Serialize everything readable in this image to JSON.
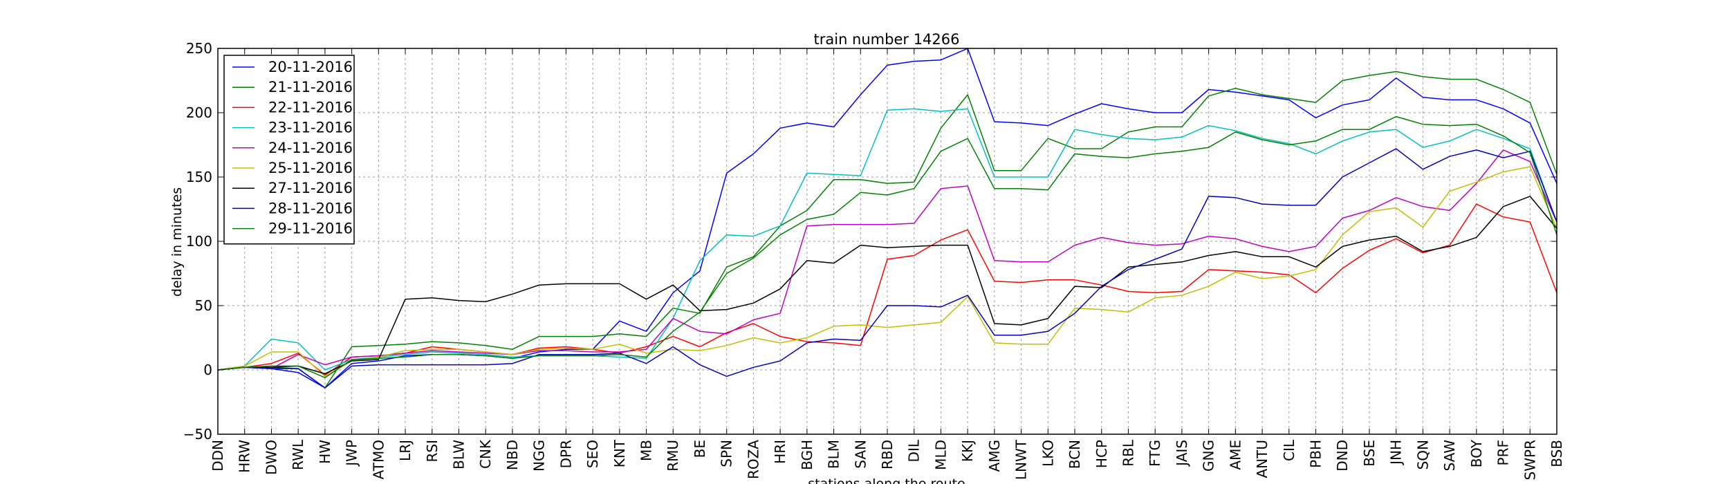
{
  "chart_data": {
    "type": "line",
    "title": "train number 14266",
    "xlabel": "stations along the route",
    "ylabel": "delay in minutes",
    "ylim": [
      -50,
      250
    ],
    "yticks": [
      "−50",
      "0",
      "50",
      "100",
      "150",
      "200",
      "250"
    ],
    "grid": true,
    "legend_position": "top-left",
    "categories": [
      "DDN",
      "HRW",
      "DWO",
      "RWL",
      "HW",
      "JWP",
      "ATMO",
      "LRJ",
      "RSI",
      "BLW",
      "CNK",
      "NBD",
      "NGG",
      "DPR",
      "SEO",
      "KNT",
      "MB",
      "RMU",
      "BE",
      "SPN",
      "ROZA",
      "HRI",
      "BGH",
      "BLM",
      "SAN",
      "RBD",
      "DIL",
      "MLD",
      "KKJ",
      "AMG",
      "LNWT",
      "LKO",
      "BCN",
      "HCP",
      "RBL",
      "FTG",
      "JAIS",
      "GNG",
      "AME",
      "ANTU",
      "CIL",
      "PBH",
      "DND",
      "BSE",
      "JNH",
      "SQN",
      "SAW",
      "BOY",
      "PRF",
      "SWPR",
      "BSB"
    ],
    "series": [
      {
        "name": "20-11-2016",
        "color": "#0000ff",
        "values": [
          0,
          2,
          1,
          -2,
          -14,
          5,
          7,
          11,
          12,
          12,
          11,
          9,
          14,
          16,
          16,
          38,
          30,
          60,
          77,
          153,
          168,
          188,
          192,
          189,
          214,
          237,
          240,
          241,
          250,
          193,
          192,
          190,
          199,
          207,
          203,
          200,
          200,
          218,
          216,
          213,
          210,
          196,
          206,
          210,
          227,
          212,
          210,
          210,
          203,
          192,
          145
        ]
      },
      {
        "name": "21-11-2016",
        "color": "#008000",
        "values": [
          0,
          2,
          2,
          1,
          -14,
          18,
          19,
          20,
          22,
          21,
          19,
          16,
          26,
          26,
          26,
          28,
          26,
          48,
          44,
          80,
          88,
          112,
          124,
          148,
          148,
          145,
          146,
          188,
          214,
          155,
          155,
          180,
          172,
          172,
          185,
          189,
          189,
          213,
          219,
          214,
          211,
          208,
          225,
          229,
          232,
          228,
          226,
          226,
          218,
          208,
          152
        ]
      },
      {
        "name": "22-11-2016",
        "color": "#ff0000",
        "values": [
          0,
          2,
          5,
          13,
          -4,
          10,
          11,
          13,
          18,
          16,
          14,
          12,
          17,
          18,
          16,
          13,
          18,
          26,
          18,
          29,
          36,
          26,
          22,
          21,
          19,
          86,
          89,
          101,
          109,
          69,
          68,
          70,
          70,
          66,
          61,
          60,
          61,
          78,
          77,
          76,
          74,
          60,
          79,
          93,
          102,
          91,
          97,
          129,
          119,
          115,
          60
        ]
      },
      {
        "name": "23-11-2016",
        "color": "#00bfbf",
        "values": [
          0,
          3,
          24,
          21,
          0,
          8,
          10,
          12,
          14,
          13,
          12,
          10,
          11,
          11,
          11,
          10,
          9,
          40,
          85,
          105,
          104,
          112,
          153,
          152,
          151,
          202,
          203,
          201,
          203,
          150,
          150,
          150,
          187,
          183,
          180,
          179,
          181,
          190,
          186,
          180,
          176,
          168,
          178,
          185,
          187,
          173,
          178,
          187,
          180,
          172,
          115
        ]
      },
      {
        "name": "24-11-2016",
        "color": "#bf00bf",
        "values": [
          0,
          2,
          1,
          12,
          4,
          10,
          11,
          13,
          15,
          14,
          13,
          12,
          15,
          15,
          14,
          14,
          16,
          40,
          30,
          28,
          39,
          44,
          112,
          113,
          113,
          113,
          114,
          141,
          143,
          85,
          84,
          84,
          97,
          103,
          99,
          97,
          98,
          104,
          102,
          96,
          92,
          96,
          118,
          124,
          134,
          127,
          124,
          145,
          171,
          162,
          115
        ]
      },
      {
        "name": "25-11-2016",
        "color": "#bfbf00",
        "values": [
          0,
          3,
          14,
          14,
          -5,
          7,
          10,
          15,
          16,
          16,
          14,
          12,
          16,
          17,
          16,
          20,
          13,
          16,
          15,
          19,
          25,
          21,
          25,
          34,
          35,
          33,
          35,
          37,
          57,
          21,
          20,
          20,
          48,
          47,
          45,
          56,
          58,
          65,
          76,
          71,
          73,
          78,
          105,
          123,
          126,
          111,
          139,
          146,
          154,
          158,
          110
        ]
      },
      {
        "name": "27-11-2016",
        "color": "#000000",
        "values": [
          0,
          2,
          2,
          3,
          -3,
          7,
          8,
          55,
          56,
          54,
          53,
          59,
          66,
          67,
          67,
          67,
          55,
          66,
          46,
          47,
          52,
          63,
          85,
          83,
          97,
          95,
          96,
          97,
          97,
          36,
          35,
          40,
          65,
          64,
          80,
          82,
          84,
          89,
          92,
          88,
          88,
          80,
          96,
          101,
          104,
          92,
          96,
          103,
          127,
          135,
          110
        ]
      },
      {
        "name": "28-11-2016",
        "color": "#0000bf",
        "values": [
          0,
          2,
          1,
          1,
          -14,
          3,
          4,
          4,
          4,
          4,
          4,
          5,
          12,
          12,
          12,
          13,
          5,
          18,
          4,
          -5,
          2,
          7,
          21,
          24,
          23,
          50,
          50,
          49,
          58,
          27,
          27,
          30,
          44,
          65,
          78,
          86,
          94,
          135,
          134,
          129,
          128,
          128,
          150,
          161,
          172,
          156,
          166,
          171,
          165,
          170,
          115
        ]
      },
      {
        "name": "29-11-2016",
        "color": "#008000",
        "values": [
          0,
          2,
          3,
          3,
          -6,
          8,
          9,
          10,
          12,
          12,
          11,
          9,
          11,
          11,
          11,
          12,
          10,
          30,
          45,
          75,
          87,
          105,
          117,
          121,
          138,
          136,
          141,
          170,
          180,
          141,
          141,
          140,
          168,
          166,
          165,
          168,
          170,
          173,
          185,
          179,
          175,
          178,
          187,
          187,
          197,
          191,
          190,
          191,
          182,
          169,
          105
        ]
      }
    ]
  }
}
